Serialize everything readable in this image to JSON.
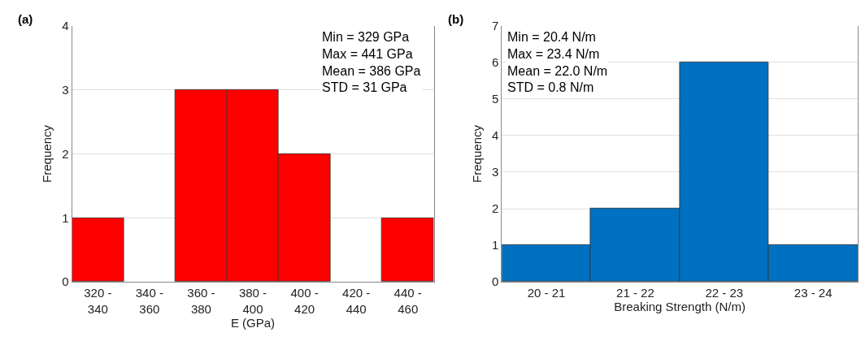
{
  "chart_data": [
    {
      "type": "bar",
      "categories": [
        "320 -\n340",
        "340 -\n360",
        "360 -\n380",
        "380 -\n400",
        "400 -\n420",
        "420 -\n440",
        "440 -\n460"
      ],
      "values": [
        1,
        0,
        3,
        3,
        2,
        0,
        1
      ],
      "color": "#ff0000",
      "xlabel": "E (GPa)",
      "ylabel": "Frequency",
      "ylim": [
        0,
        4
      ],
      "yticks": [
        0,
        1,
        2,
        3,
        4
      ],
      "grid": "y",
      "annotations": [
        "(a)",
        "Min = 329 GPa",
        "Max = 441 GPa",
        "Mean = 386 GPa",
        "STD = 31 GPa"
      ]
    },
    {
      "type": "bar",
      "categories": [
        "20 - 21",
        "21 - 22",
        "22 - 23",
        "23 - 24"
      ],
      "values": [
        1,
        2,
        6,
        1
      ],
      "color": "#0070c0",
      "xlabel": "Breaking Strength (N/m)",
      "ylabel": "Frequency",
      "ylim": [
        0,
        7
      ],
      "yticks": [
        0,
        1,
        2,
        3,
        4,
        5,
        6,
        7
      ],
      "grid": "y",
      "annotations": [
        "(b)",
        "Min = 20.4 N/m",
        "Max = 23.4 N/m",
        "Mean = 22.0 N/m",
        "STD = 0.8 N/m"
      ]
    }
  ]
}
